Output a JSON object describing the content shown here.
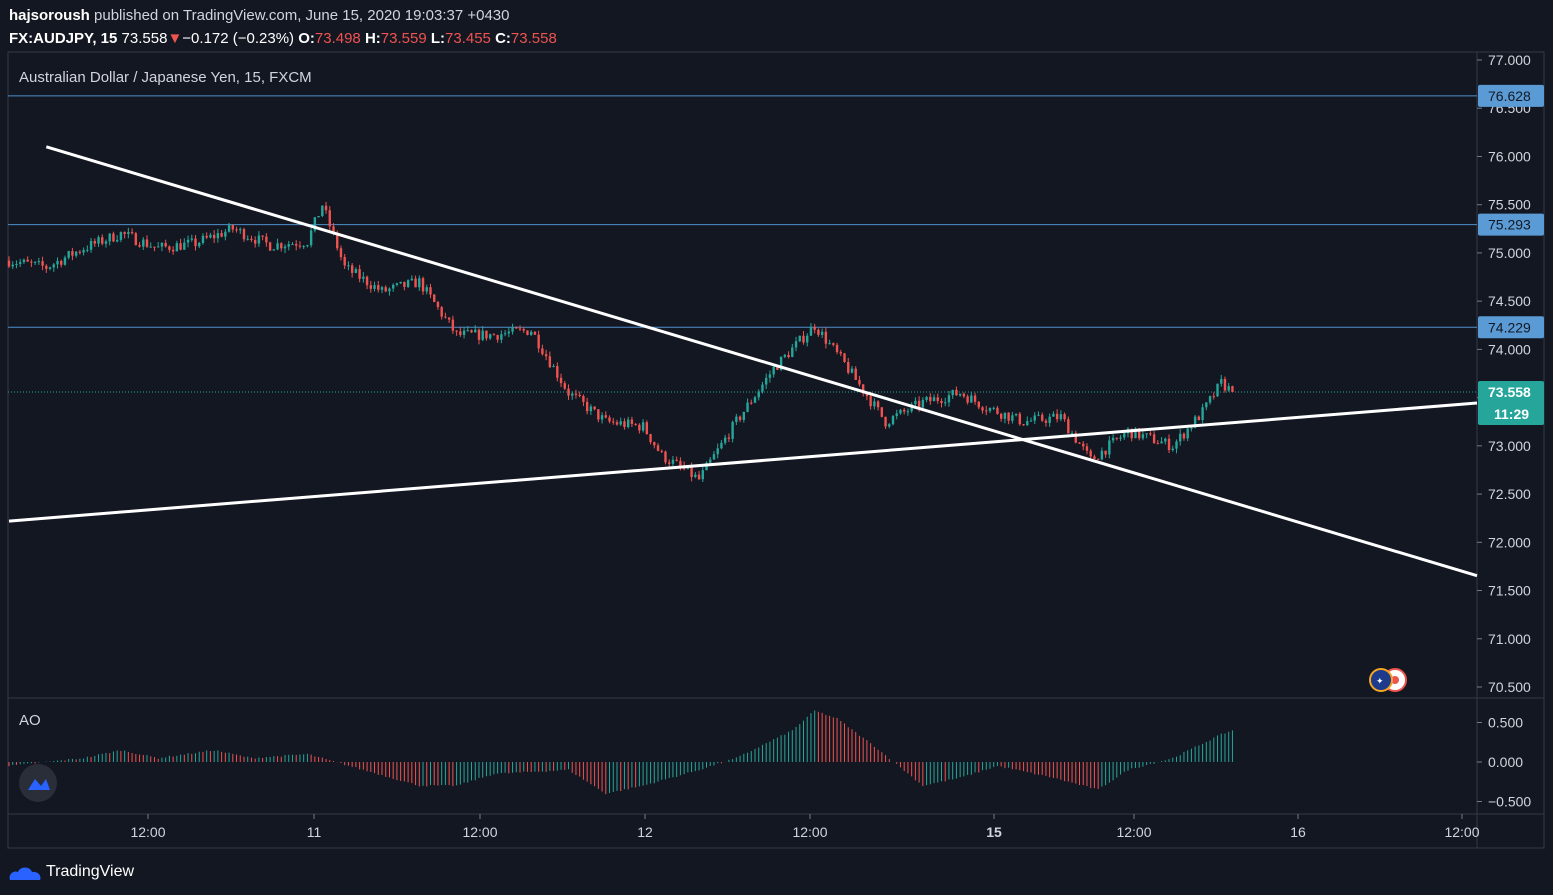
{
  "publish": {
    "author": "hajsoroush",
    "text": "published on TradingView.com, June 15, 2020 19:03:37 +0430"
  },
  "ohlc": {
    "symbol": "FX:AUDJPY, 15",
    "last": "73.558",
    "change": "−0.172 (−0.23%)",
    "o_label": "O:",
    "o": "73.498",
    "h_label": "H:",
    "h": "73.559",
    "l_label": "L:",
    "l": "73.455",
    "c_label": "C:",
    "c": "73.558"
  },
  "chart_title": "Australian Dollar / Japanese Yen, 15, FXCM",
  "indicator_name": "AO",
  "brand": "TradingView",
  "colors": {
    "background": "#131722",
    "up": "#26a69a",
    "down": "#ef5350",
    "hline": "#4f8fc9",
    "trendline": "#ffffff"
  },
  "chart_data": {
    "type": "candlestick",
    "title": "Australian Dollar / Japanese Yen, 15, FXCM",
    "price_axis": {
      "ticks": [
        "77.000",
        "76.500",
        "76.000",
        "75.500",
        "75.000",
        "74.500",
        "74.000",
        "73.500",
        "73.000",
        "72.500",
        "72.000",
        "71.500",
        "71.000",
        "70.500"
      ],
      "range": [
        70.4,
        77.05
      ]
    },
    "time_axis": [
      "12:00",
      "11",
      "12:00",
      "12",
      "12:00",
      "15",
      "12:00",
      "16",
      "12:00"
    ],
    "horizontal_lines": [
      {
        "price": 76.628,
        "label": "76.628"
      },
      {
        "price": 75.293,
        "label": "75.293"
      },
      {
        "price": 74.229,
        "label": "74.229"
      }
    ],
    "last_price": {
      "value": 73.558,
      "label": "73.558",
      "countdown": "11:29"
    },
    "trendlines": [
      {
        "p1": {
          "bar": 10,
          "price": 76.1
        },
        "p2": {
          "bar": 299,
          "price": 72.75
        }
      },
      {
        "p1": {
          "bar": 0,
          "price": 72.22
        },
        "p2": {
          "bar": 299,
          "price": 73.15
        }
      }
    ],
    "price_path": [
      [
        0,
        74.92
      ],
      [
        10,
        74.85
      ],
      [
        20,
        75.05
      ],
      [
        30,
        75.2
      ],
      [
        40,
        75.05
      ],
      [
        50,
        75.1
      ],
      [
        60,
        75.25
      ],
      [
        70,
        75.08
      ],
      [
        80,
        75.12
      ],
      [
        84,
        75.5
      ],
      [
        90,
        74.85
      ],
      [
        100,
        74.6
      ],
      [
        110,
        74.7
      ],
      [
        120,
        74.15
      ],
      [
        130,
        74.15
      ],
      [
        140,
        74.2
      ],
      [
        150,
        73.55
      ],
      [
        160,
        73.25
      ],
      [
        170,
        73.2
      ],
      [
        175,
        72.9
      ],
      [
        185,
        72.65
      ],
      [
        195,
        73.25
      ],
      [
        205,
        73.8
      ],
      [
        216,
        74.25
      ],
      [
        224,
        73.85
      ],
      [
        235,
        73.25
      ],
      [
        245,
        73.45
      ],
      [
        255,
        73.55
      ],
      [
        262,
        73.4
      ],
      [
        272,
        73.25
      ],
      [
        282,
        73.3
      ],
      [
        290,
        72.85
      ],
      [
        300,
        73.15
      ],
      [
        312,
        73.0
      ],
      [
        320,
        73.35
      ],
      [
        325,
        73.65
      ],
      [
        328,
        73.56
      ]
    ],
    "ao_axis": {
      "ticks": [
        "0.500",
        "0.000",
        "−0.500"
      ],
      "range": [
        -0.62,
        0.82
      ]
    },
    "ao_path": [
      [
        0,
        -0.05
      ],
      [
        20,
        0.05
      ],
      [
        30,
        0.15
      ],
      [
        40,
        0.05
      ],
      [
        55,
        0.15
      ],
      [
        65,
        0.05
      ],
      [
        80,
        0.1
      ],
      [
        95,
        -0.1
      ],
      [
        110,
        -0.3
      ],
      [
        120,
        -0.3
      ],
      [
        130,
        -0.15
      ],
      [
        150,
        -0.1
      ],
      [
        160,
        -0.4
      ],
      [
        170,
        -0.3
      ],
      [
        185,
        -0.1
      ],
      [
        195,
        0.05
      ],
      [
        210,
        0.4
      ],
      [
        216,
        0.65
      ],
      [
        222,
        0.55
      ],
      [
        232,
        0.2
      ],
      [
        245,
        -0.3
      ],
      [
        255,
        -0.2
      ],
      [
        265,
        -0.05
      ],
      [
        280,
        -0.2
      ],
      [
        292,
        -0.35
      ],
      [
        300,
        -0.1
      ],
      [
        312,
        0.05
      ],
      [
        325,
        0.35
      ],
      [
        328,
        0.4
      ]
    ]
  }
}
